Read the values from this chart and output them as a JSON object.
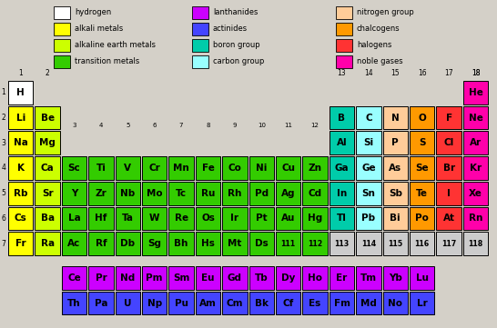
{
  "bg_color": "#d4d0c8",
  "colors": {
    "hydrogen": "#ffffff",
    "alkali": "#ffff00",
    "alkaline": "#ccff00",
    "transition": "#33cc00",
    "lanthanides": "#cc00ff",
    "actinides": "#4444ff",
    "boron_group": "#00ccaa",
    "carbon_group": "#99ffff",
    "nitrogen_group": "#ffcc99",
    "chalcogens": "#ff9900",
    "halogens": "#ff3333",
    "noble": "#ff00aa",
    "unknown": "#cccccc"
  },
  "elements": [
    {
      "symbol": "H",
      "row": 0,
      "col": 0,
      "color": "hydrogen"
    },
    {
      "symbol": "He",
      "row": 0,
      "col": 17,
      "color": "noble"
    },
    {
      "symbol": "Li",
      "row": 1,
      "col": 0,
      "color": "alkali"
    },
    {
      "symbol": "Be",
      "row": 1,
      "col": 1,
      "color": "alkaline"
    },
    {
      "symbol": "B",
      "row": 1,
      "col": 12,
      "color": "boron_group"
    },
    {
      "symbol": "C",
      "row": 1,
      "col": 13,
      "color": "carbon_group"
    },
    {
      "symbol": "N",
      "row": 1,
      "col": 14,
      "color": "nitrogen_group"
    },
    {
      "symbol": "O",
      "row": 1,
      "col": 15,
      "color": "chalcogens"
    },
    {
      "symbol": "F",
      "row": 1,
      "col": 16,
      "color": "halogens"
    },
    {
      "symbol": "Ne",
      "row": 1,
      "col": 17,
      "color": "noble"
    },
    {
      "symbol": "Na",
      "row": 2,
      "col": 0,
      "color": "alkali"
    },
    {
      "symbol": "Mg",
      "row": 2,
      "col": 1,
      "color": "alkaline"
    },
    {
      "symbol": "Al",
      "row": 2,
      "col": 12,
      "color": "boron_group"
    },
    {
      "symbol": "Si",
      "row": 2,
      "col": 13,
      "color": "carbon_group"
    },
    {
      "symbol": "P",
      "row": 2,
      "col": 14,
      "color": "nitrogen_group"
    },
    {
      "symbol": "S",
      "row": 2,
      "col": 15,
      "color": "chalcogens"
    },
    {
      "symbol": "Cl",
      "row": 2,
      "col": 16,
      "color": "halogens"
    },
    {
      "symbol": "Ar",
      "row": 2,
      "col": 17,
      "color": "noble"
    },
    {
      "symbol": "K",
      "row": 3,
      "col": 0,
      "color": "alkali"
    },
    {
      "symbol": "Ca",
      "row": 3,
      "col": 1,
      "color": "alkaline"
    },
    {
      "symbol": "Sc",
      "row": 3,
      "col": 2,
      "color": "transition"
    },
    {
      "symbol": "Ti",
      "row": 3,
      "col": 3,
      "color": "transition"
    },
    {
      "symbol": "V",
      "row": 3,
      "col": 4,
      "color": "transition"
    },
    {
      "symbol": "Cr",
      "row": 3,
      "col": 5,
      "color": "transition"
    },
    {
      "symbol": "Mn",
      "row": 3,
      "col": 6,
      "color": "transition"
    },
    {
      "symbol": "Fe",
      "row": 3,
      "col": 7,
      "color": "transition"
    },
    {
      "symbol": "Co",
      "row": 3,
      "col": 8,
      "color": "transition"
    },
    {
      "symbol": "Ni",
      "row": 3,
      "col": 9,
      "color": "transition"
    },
    {
      "symbol": "Cu",
      "row": 3,
      "col": 10,
      "color": "transition"
    },
    {
      "symbol": "Zn",
      "row": 3,
      "col": 11,
      "color": "transition"
    },
    {
      "symbol": "Ga",
      "row": 3,
      "col": 12,
      "color": "boron_group"
    },
    {
      "symbol": "Ge",
      "row": 3,
      "col": 13,
      "color": "carbon_group"
    },
    {
      "symbol": "As",
      "row": 3,
      "col": 14,
      "color": "nitrogen_group"
    },
    {
      "symbol": "Se",
      "row": 3,
      "col": 15,
      "color": "chalcogens"
    },
    {
      "symbol": "Br",
      "row": 3,
      "col": 16,
      "color": "halogens"
    },
    {
      "symbol": "Kr",
      "row": 3,
      "col": 17,
      "color": "noble"
    },
    {
      "symbol": "Rb",
      "row": 4,
      "col": 0,
      "color": "alkali"
    },
    {
      "symbol": "Sr",
      "row": 4,
      "col": 1,
      "color": "alkaline"
    },
    {
      "symbol": "Y",
      "row": 4,
      "col": 2,
      "color": "transition"
    },
    {
      "symbol": "Zr",
      "row": 4,
      "col": 3,
      "color": "transition"
    },
    {
      "symbol": "Nb",
      "row": 4,
      "col": 4,
      "color": "transition"
    },
    {
      "symbol": "Mo",
      "row": 4,
      "col": 5,
      "color": "transition"
    },
    {
      "symbol": "Tc",
      "row": 4,
      "col": 6,
      "color": "transition"
    },
    {
      "symbol": "Ru",
      "row": 4,
      "col": 7,
      "color": "transition"
    },
    {
      "symbol": "Rh",
      "row": 4,
      "col": 8,
      "color": "transition"
    },
    {
      "symbol": "Pd",
      "row": 4,
      "col": 9,
      "color": "transition"
    },
    {
      "symbol": "Ag",
      "row": 4,
      "col": 10,
      "color": "transition"
    },
    {
      "symbol": "Cd",
      "row": 4,
      "col": 11,
      "color": "transition"
    },
    {
      "symbol": "In",
      "row": 4,
      "col": 12,
      "color": "boron_group"
    },
    {
      "symbol": "Sn",
      "row": 4,
      "col": 13,
      "color": "carbon_group"
    },
    {
      "symbol": "Sb",
      "row": 4,
      "col": 14,
      "color": "nitrogen_group"
    },
    {
      "symbol": "Te",
      "row": 4,
      "col": 15,
      "color": "chalcogens"
    },
    {
      "symbol": "I",
      "row": 4,
      "col": 16,
      "color": "halogens"
    },
    {
      "symbol": "Xe",
      "row": 4,
      "col": 17,
      "color": "noble"
    },
    {
      "symbol": "Cs",
      "row": 5,
      "col": 0,
      "color": "alkali"
    },
    {
      "symbol": "Ba",
      "row": 5,
      "col": 1,
      "color": "alkaline"
    },
    {
      "symbol": "La",
      "row": 5,
      "col": 2,
      "color": "transition"
    },
    {
      "symbol": "Hf",
      "row": 5,
      "col": 3,
      "color": "transition"
    },
    {
      "symbol": "Ta",
      "row": 5,
      "col": 4,
      "color": "transition"
    },
    {
      "symbol": "W",
      "row": 5,
      "col": 5,
      "color": "transition"
    },
    {
      "symbol": "Re",
      "row": 5,
      "col": 6,
      "color": "transition"
    },
    {
      "symbol": "Os",
      "row": 5,
      "col": 7,
      "color": "transition"
    },
    {
      "symbol": "Ir",
      "row": 5,
      "col": 8,
      "color": "transition"
    },
    {
      "symbol": "Pt",
      "row": 5,
      "col": 9,
      "color": "transition"
    },
    {
      "symbol": "Au",
      "row": 5,
      "col": 10,
      "color": "transition"
    },
    {
      "symbol": "Hg",
      "row": 5,
      "col": 11,
      "color": "transition"
    },
    {
      "symbol": "Tl",
      "row": 5,
      "col": 12,
      "color": "boron_group"
    },
    {
      "symbol": "Pb",
      "row": 5,
      "col": 13,
      "color": "carbon_group"
    },
    {
      "symbol": "Bi",
      "row": 5,
      "col": 14,
      "color": "nitrogen_group"
    },
    {
      "symbol": "Po",
      "row": 5,
      "col": 15,
      "color": "chalcogens"
    },
    {
      "symbol": "At",
      "row": 5,
      "col": 16,
      "color": "halogens"
    },
    {
      "symbol": "Rn",
      "row": 5,
      "col": 17,
      "color": "noble"
    },
    {
      "symbol": "Fr",
      "row": 6,
      "col": 0,
      "color": "alkali"
    },
    {
      "symbol": "Ra",
      "row": 6,
      "col": 1,
      "color": "alkaline"
    },
    {
      "symbol": "Ac",
      "row": 6,
      "col": 2,
      "color": "transition"
    },
    {
      "symbol": "Rf",
      "row": 6,
      "col": 3,
      "color": "transition"
    },
    {
      "symbol": "Db",
      "row": 6,
      "col": 4,
      "color": "transition"
    },
    {
      "symbol": "Sg",
      "row": 6,
      "col": 5,
      "color": "transition"
    },
    {
      "symbol": "Bh",
      "row": 6,
      "col": 6,
      "color": "transition"
    },
    {
      "symbol": "Hs",
      "row": 6,
      "col": 7,
      "color": "transition"
    },
    {
      "symbol": "Mt",
      "row": 6,
      "col": 8,
      "color": "transition"
    },
    {
      "symbol": "Ds",
      "row": 6,
      "col": 9,
      "color": "transition"
    },
    {
      "symbol": "111",
      "row": 6,
      "col": 10,
      "color": "transition"
    },
    {
      "symbol": "112",
      "row": 6,
      "col": 11,
      "color": "transition"
    },
    {
      "symbol": "113",
      "row": 6,
      "col": 12,
      "color": "unknown"
    },
    {
      "symbol": "114",
      "row": 6,
      "col": 13,
      "color": "unknown"
    },
    {
      "symbol": "115",
      "row": 6,
      "col": 14,
      "color": "unknown"
    },
    {
      "symbol": "116",
      "row": 6,
      "col": 15,
      "color": "unknown"
    },
    {
      "symbol": "117",
      "row": 6,
      "col": 16,
      "color": "unknown"
    },
    {
      "symbol": "118",
      "row": 6,
      "col": 17,
      "color": "unknown"
    },
    {
      "symbol": "Ce",
      "row": 8,
      "col": 2,
      "color": "lanthanides"
    },
    {
      "symbol": "Pr",
      "row": 8,
      "col": 3,
      "color": "lanthanides"
    },
    {
      "symbol": "Nd",
      "row": 8,
      "col": 4,
      "color": "lanthanides"
    },
    {
      "symbol": "Pm",
      "row": 8,
      "col": 5,
      "color": "lanthanides"
    },
    {
      "symbol": "Sm",
      "row": 8,
      "col": 6,
      "color": "lanthanides"
    },
    {
      "symbol": "Eu",
      "row": 8,
      "col": 7,
      "color": "lanthanides"
    },
    {
      "symbol": "Gd",
      "row": 8,
      "col": 8,
      "color": "lanthanides"
    },
    {
      "symbol": "Tb",
      "row": 8,
      "col": 9,
      "color": "lanthanides"
    },
    {
      "symbol": "Dy",
      "row": 8,
      "col": 10,
      "color": "lanthanides"
    },
    {
      "symbol": "Ho",
      "row": 8,
      "col": 11,
      "color": "lanthanides"
    },
    {
      "symbol": "Er",
      "row": 8,
      "col": 12,
      "color": "lanthanides"
    },
    {
      "symbol": "Tm",
      "row": 8,
      "col": 13,
      "color": "lanthanides"
    },
    {
      "symbol": "Yb",
      "row": 8,
      "col": 14,
      "color": "lanthanides"
    },
    {
      "symbol": "Lu",
      "row": 8,
      "col": 15,
      "color": "lanthanides"
    },
    {
      "symbol": "Th",
      "row": 9,
      "col": 2,
      "color": "actinides"
    },
    {
      "symbol": "Pa",
      "row": 9,
      "col": 3,
      "color": "actinides"
    },
    {
      "symbol": "U",
      "row": 9,
      "col": 4,
      "color": "actinides"
    },
    {
      "symbol": "Np",
      "row": 9,
      "col": 5,
      "color": "actinides"
    },
    {
      "symbol": "Pu",
      "row": 9,
      "col": 6,
      "color": "actinides"
    },
    {
      "symbol": "Am",
      "row": 9,
      "col": 7,
      "color": "actinides"
    },
    {
      "symbol": "Cm",
      "row": 9,
      "col": 8,
      "color": "actinides"
    },
    {
      "symbol": "Bk",
      "row": 9,
      "col": 9,
      "color": "actinides"
    },
    {
      "symbol": "Cf",
      "row": 9,
      "col": 10,
      "color": "actinides"
    },
    {
      "symbol": "Es",
      "row": 9,
      "col": 11,
      "color": "actinides"
    },
    {
      "symbol": "Fm",
      "row": 9,
      "col": 12,
      "color": "actinides"
    },
    {
      "symbol": "Md",
      "row": 9,
      "col": 13,
      "color": "actinides"
    },
    {
      "symbol": "No",
      "row": 9,
      "col": 14,
      "color": "actinides"
    },
    {
      "symbol": "Lr",
      "row": 9,
      "col": 15,
      "color": "actinides"
    }
  ],
  "legend_left": [
    {
      "label": "hydrogen",
      "color": "#ffffff"
    },
    {
      "label": "alkali metals",
      "color": "#ffff00"
    },
    {
      "label": "alkaline earth metals",
      "color": "#ccff00"
    },
    {
      "label": "transition metals",
      "color": "#33cc00"
    }
  ],
  "legend_mid": [
    {
      "label": "lanthanides",
      "color": "#cc00ff"
    },
    {
      "label": "actinides",
      "color": "#4444ff"
    },
    {
      "label": "boron group",
      "color": "#00ccaa"
    },
    {
      "label": "carbon group",
      "color": "#99ffff"
    }
  ],
  "legend_right": [
    {
      "label": "nitrogen group",
      "color": "#ffcc99"
    },
    {
      "label": "chalcogens",
      "color": "#ff9900"
    },
    {
      "label": "halogens",
      "color": "#ff3333"
    },
    {
      "label": "noble gases",
      "color": "#ff00aa"
    }
  ],
  "group_labels": [
    "1",
    "2",
    "3",
    "4",
    "5",
    "6",
    "7",
    "8",
    "9",
    "10",
    "11",
    "12",
    "13",
    "14",
    "15",
    "16",
    "17",
    "18"
  ]
}
